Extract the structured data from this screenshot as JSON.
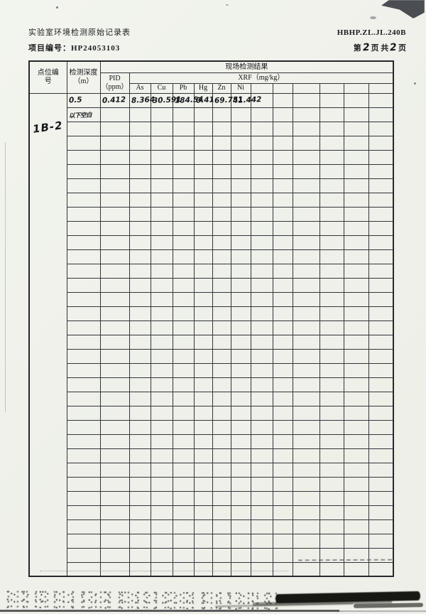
{
  "page": {
    "title": "实验室环境检测原始记录表",
    "form_code": "HBHP.ZL.JL.240B",
    "project_label": "项目编号：",
    "project_number": "HP24053103",
    "page_prefix": "第",
    "page_current": "2",
    "page_mid": "页 共",
    "page_total": "2",
    "page_suffix": "页"
  },
  "table": {
    "header": {
      "point_col": "点位编号",
      "depth_col": "检测深度（m）",
      "result_group": "现场检测结果",
      "pid_line1": "PID",
      "pid_line2": "（ppm）",
      "xrf_group": "XRF（mg/kg）",
      "elements": [
        "As",
        "Cu",
        "Pb",
        "Hg",
        "Zn",
        "Ni"
      ],
      "extra_columns": 6
    },
    "point_id": "1B-2",
    "entries": [
      {
        "depth": "0.5",
        "pid": "0.412",
        "values": [
          "8.364",
          "30.591",
          "184.54",
          "0.41",
          "69.751",
          "41.442",
          "",
          "",
          "",
          "",
          "",
          ""
        ]
      },
      {
        "depth": "以下空白",
        "pid": "",
        "values": [
          "",
          "",
          "",
          "",
          "",
          "",
          "",
          "",
          "",
          "",
          "",
          ""
        ]
      }
    ],
    "empty_rows": 32
  },
  "colors": {
    "paper": "#eff1ea",
    "grid_line": "#33353a",
    "handwriting_ink": "#17181c",
    "print_ink": "#1b1b1d"
  }
}
